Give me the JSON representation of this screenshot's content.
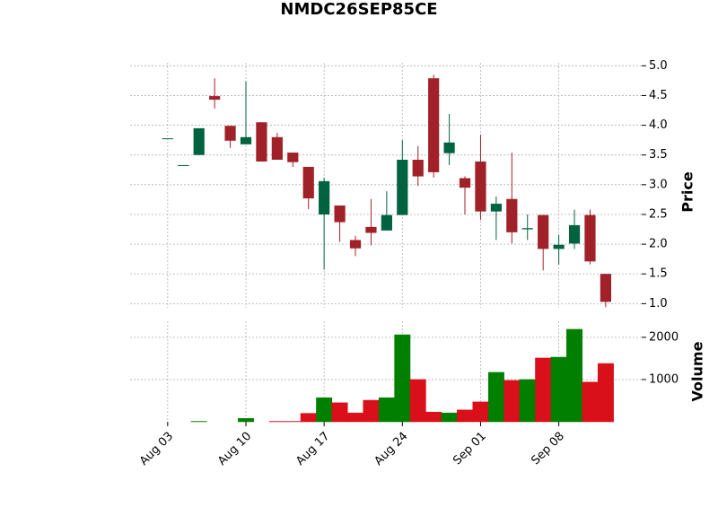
{
  "chart_data": {
    "type": "candlestick",
    "title": "NMDC26SEP85CE",
    "y_label": "Price",
    "volume_label": "Volume",
    "categories": [
      "Aug 03",
      null,
      null,
      null,
      null,
      "Aug 10",
      null,
      null,
      null,
      null,
      "Aug 17",
      null,
      null,
      null,
      null,
      "Aug 24",
      null,
      null,
      null,
      null,
      "Sep 01",
      null,
      null,
      null,
      null,
      "Sep 08",
      null,
      null,
      null
    ],
    "open": [
      3.78,
      3.33,
      3.5,
      4.49,
      3.99,
      3.68,
      4.05,
      3.8,
      3.54,
      3.3,
      2.5,
      2.65,
      2.07,
      2.29,
      2.23,
      2.49,
      3.42,
      4.79,
      3.53,
      3.11,
      3.39,
      2.55,
      2.76,
      2.25,
      2.49,
      1.92,
      2.01,
      2.49,
      1.5
    ],
    "high": [
      3.78,
      3.33,
      3.95,
      4.79,
      3.99,
      4.74,
      4.05,
      3.87,
      3.54,
      3.3,
      3.12,
      2.65,
      2.14,
      2.76,
      2.89,
      3.75,
      3.65,
      4.85,
      4.19,
      3.14,
      3.84,
      2.8,
      3.54,
      2.5,
      2.49,
      2.16,
      2.58,
      2.58,
      1.5
    ],
    "low": [
      3.78,
      3.33,
      3.5,
      4.28,
      3.62,
      3.68,
      3.39,
      3.42,
      3.3,
      2.59,
      1.57,
      2.04,
      1.8,
      1.98,
      2.23,
      2.49,
      2.98,
      3.12,
      3.33,
      2.5,
      2.41,
      2.07,
      2.01,
      2.07,
      1.56,
      1.66,
      1.92,
      1.66,
      0.94
    ],
    "close": [
      3.78,
      3.33,
      3.95,
      4.43,
      3.74,
      3.8,
      3.39,
      3.42,
      3.38,
      2.77,
      3.06,
      2.37,
      1.93,
      2.19,
      2.49,
      3.42,
      3.14,
      3.21,
      3.71,
      2.95,
      2.55,
      2.68,
      2.2,
      2.27,
      1.92,
      1.99,
      2.32,
      1.71,
      1.03
    ],
    "volume": [
      0,
      0,
      10,
      0,
      0,
      80,
      0,
      10,
      10,
      200,
      570,
      450,
      210,
      510,
      570,
      2060,
      1000,
      230,
      210,
      280,
      470,
      1170,
      980,
      1000,
      1510,
      1530,
      2190,
      940,
      1380
    ],
    "up_color": "#006340",
    "down_color": "#a02128",
    "volume_up_color": "#007f00",
    "volume_down_color": "#d90f1a",
    "ylim": [
      0.93,
      5.05
    ],
    "yticks": [
      {
        "value": 1,
        "label": "1.0"
      },
      {
        "value": 1.5,
        "label": "1.5"
      },
      {
        "value": 2,
        "label": "2.0"
      },
      {
        "value": 2.5,
        "label": "2.5"
      },
      {
        "value": 3,
        "label": "3.0"
      },
      {
        "value": 3.5,
        "label": "3.5"
      },
      {
        "value": 4,
        "label": "4.0"
      },
      {
        "value": 4.5,
        "label": "4.5"
      },
      {
        "value": 5,
        "label": "5.0"
      }
    ],
    "volume_ylim": [
      0,
      2380
    ],
    "volume_yticks": [
      1000,
      2000
    ],
    "grid": true
  }
}
